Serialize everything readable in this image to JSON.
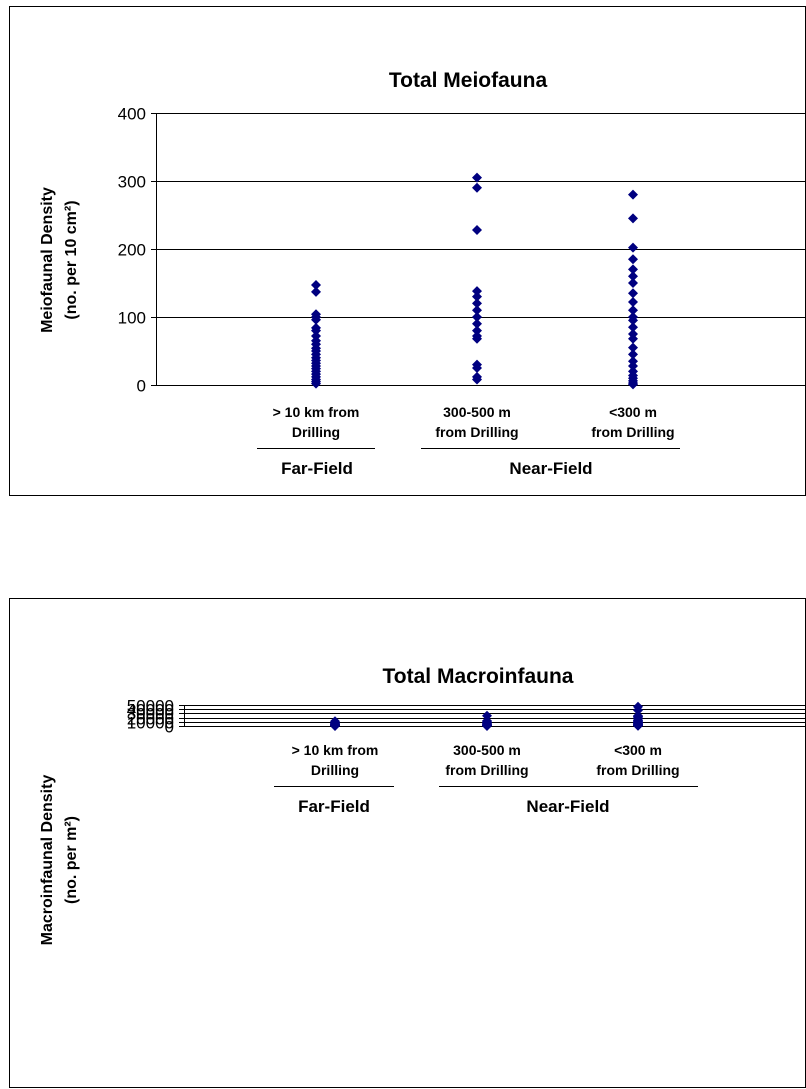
{
  "chart_data": [
    {
      "type": "scatter",
      "title": "Total Meiofauna",
      "ylabel_line1": "Meiofaunal Density",
      "ylabel_line2": "(no. per 10 cm²)",
      "ylim": [
        0,
        400
      ],
      "yticks": [
        "0",
        "100",
        "200",
        "300",
        "400"
      ],
      "categories": [
        {
          "line1": "> 10 km from",
          "line2": "Drilling"
        },
        {
          "line1": "300-500 m",
          "line2": "from Drilling"
        },
        {
          "line1": "<300 m",
          "line2": "from Drilling"
        }
      ],
      "groups": [
        {
          "label": "Far-Field"
        },
        {
          "label": "Near-Field"
        }
      ],
      "grid": true,
      "series": [
        {
          "category": 0,
          "values": [
            147,
            137,
            104,
            100,
            96,
            84,
            80,
            72,
            65,
            60,
            54,
            50,
            45,
            40,
            36,
            32,
            28,
            24,
            20,
            16,
            12,
            8,
            5,
            2
          ]
        },
        {
          "category": 1,
          "values": [
            305,
            290,
            228,
            138,
            130,
            120,
            110,
            100,
            90,
            80,
            72,
            68,
            30,
            25,
            12,
            8
          ]
        },
        {
          "category": 2,
          "values": [
            280,
            245,
            202,
            185,
            170,
            160,
            150,
            135,
            122,
            110,
            100,
            95,
            85,
            75,
            68,
            55,
            45,
            35,
            28,
            20,
            14,
            10,
            6,
            3,
            1
          ]
        }
      ],
      "marker_color": "#000080"
    },
    {
      "type": "scatter",
      "title": "Total Macroinfauna",
      "ylabel_line1": "Macroinfaunal Density",
      "ylabel_line2": "(no. per m²)",
      "ylim": [
        0,
        50000
      ],
      "yticks": [
        "0",
        "10000",
        "20000",
        "30000",
        "40000",
        "50000"
      ],
      "categories": [
        {
          "line1": "> 10 km from",
          "line2": "Drilling"
        },
        {
          "line1": "300-500 m",
          "line2": "from Drilling"
        },
        {
          "line1": "<300 m",
          "line2": "from Drilling"
        }
      ],
      "groups": [
        {
          "label": "Far-Field"
        },
        {
          "label": "Near-Field"
        }
      ],
      "grid": true,
      "series": [
        {
          "category": 0,
          "values": [
            11300,
            8400,
            7200,
            6000,
            5000,
            4200,
            3600,
            3000,
            2500,
            2000,
            1600,
            1200,
            900,
            600,
            400,
            200
          ]
        },
        {
          "category": 1,
          "values": [
            24300,
            12200,
            11300,
            8000,
            6700,
            5000,
            4000,
            3000,
            2000,
            1300,
            800,
            400,
            150
          ]
        },
        {
          "category": 2,
          "values": [
            45800,
            37400,
            24300,
            23000,
            21900,
            19000,
            14200,
            13000,
            11800,
            10500,
            9300,
            8300,
            7300,
            6500,
            5700,
            4800,
            4000,
            3300,
            2700,
            2000,
            1500,
            1000,
            500
          ]
        }
      ],
      "marker_color": "#000080"
    }
  ]
}
